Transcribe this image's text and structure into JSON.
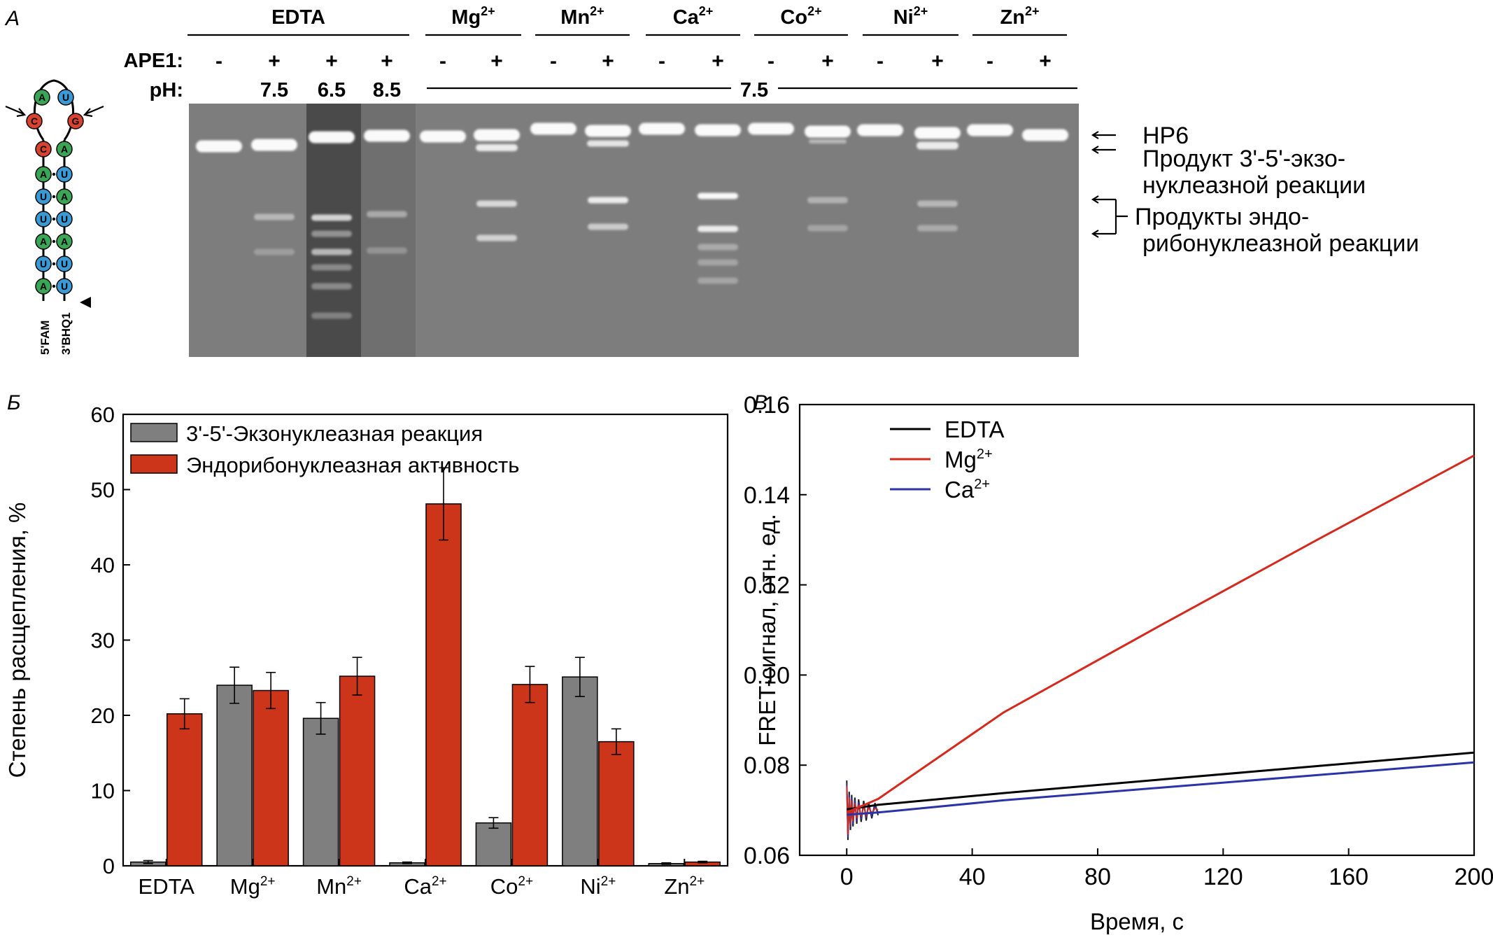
{
  "panels": {
    "a": {
      "letter": "А",
      "lane_groups": [
        {
          "name": "EDTA",
          "sup": ""
        },
        {
          "name": "Mg",
          "sup": "2+"
        },
        {
          "name": "Mn",
          "sup": "2+"
        },
        {
          "name": "Ca",
          "sup": "2+"
        },
        {
          "name": "Co",
          "sup": "2+"
        },
        {
          "name": "Ni",
          "sup": "2+"
        },
        {
          "name": "Zn",
          "sup": "2+"
        }
      ],
      "ape1_label": "APE1:",
      "ph_label": "pH:",
      "ape1_marks": [
        "-",
        "+",
        "+",
        "+",
        "-",
        "+",
        "-",
        "+",
        "-",
        "+",
        "-",
        "+",
        "-",
        "+",
        "-",
        "+"
      ],
      "ph_values": [
        "7.5",
        "6.5",
        "8.5"
      ],
      "ph_common": "7.5",
      "hairpin": {
        "left_strand": [
          "A",
          "U",
          "A",
          "U",
          "U",
          "A",
          "C"
        ],
        "right_strand": [
          "U",
          "U",
          "A",
          "U",
          "A",
          "U",
          "A"
        ],
        "loop": [
          "C",
          "A",
          "U",
          "G"
        ],
        "label_5": "5'FAM",
        "label_3": "3'BHQ1",
        "colors": {
          "A": "#3aa655",
          "U": "#3b9ad6",
          "C": "#d9422e",
          "G": "#d9422e"
        }
      },
      "gel_annotations": {
        "hp6": "HP6",
        "exo_line1": "Продукт 3'-5'-экзо-",
        "exo_line2": "нуклеазной реакции",
        "endo_line1": "Продукты эндо-",
        "endo_line2": "рибонуклеазной реакции"
      }
    },
    "b": {
      "letter": "Б"
    },
    "c": {
      "letter": "В"
    }
  },
  "chart_data": [
    {
      "type": "bar",
      "ylabel": "Степень расщепления, %",
      "ylim": [
        0,
        60
      ],
      "yticks": [
        0,
        10,
        20,
        30,
        40,
        50,
        60
      ],
      "categories": [
        {
          "name": "EDTA",
          "sup": ""
        },
        {
          "name": "Mg",
          "sup": "2+"
        },
        {
          "name": "Mn",
          "sup": "2+"
        },
        {
          "name": "Ca",
          "sup": "2+"
        },
        {
          "name": "Co",
          "sup": "2+"
        },
        {
          "name": "Ni",
          "sup": "2+"
        },
        {
          "name": "Zn",
          "sup": "2+"
        }
      ],
      "series": [
        {
          "name": "3'-5'-Экзонуклеазная реакция",
          "color": "#7f7f7f",
          "values": [
            0.5,
            24.0,
            19.6,
            0.4,
            5.7,
            25.1,
            0.3
          ],
          "errors": [
            0.2,
            2.4,
            2.1,
            0.1,
            0.7,
            2.6,
            0.1
          ]
        },
        {
          "name": "Эндорибонуклеазная активность",
          "color": "#cc3519",
          "values": [
            20.2,
            23.3,
            25.2,
            48.1,
            24.1,
            16.5,
            0.5
          ],
          "errors": [
            2.0,
            2.4,
            2.5,
            4.8,
            2.4,
            1.7,
            0.1
          ]
        }
      ],
      "legend_position": "top-left"
    },
    {
      "type": "line",
      "xlabel": "Время, с",
      "ylabel": "FRET-сигнал, отн. ед.",
      "xlim": [
        -15,
        200
      ],
      "ylim": [
        0.06,
        0.16
      ],
      "xticks": [
        0,
        40,
        80,
        120,
        160,
        200
      ],
      "yticks": [
        "0.06",
        "0.08",
        "0.10",
        "0.12",
        "0.14",
        "0.16"
      ],
      "series": [
        {
          "name": "EDTA",
          "sup": "",
          "color": "#000000",
          "x": [
            0,
            10,
            50,
            100,
            150,
            200
          ],
          "y": [
            0.0702,
            0.0712,
            0.0738,
            0.0768,
            0.0798,
            0.0828
          ]
        },
        {
          "name": "Mg",
          "sup": "2+",
          "color": "#d42a1e",
          "x": [
            0,
            10,
            50,
            100,
            150,
            200
          ],
          "y": [
            0.0695,
            0.0725,
            0.0917,
            0.111,
            0.13,
            0.1487
          ]
        },
        {
          "name": "Ca",
          "sup": "2+",
          "color": "#2b34a6",
          "x": [
            0,
            10,
            50,
            100,
            150,
            200
          ],
          "y": [
            0.069,
            0.0695,
            0.0722,
            0.075,
            0.0778,
            0.0806
          ]
        }
      ],
      "legend_position": "top-left"
    }
  ]
}
